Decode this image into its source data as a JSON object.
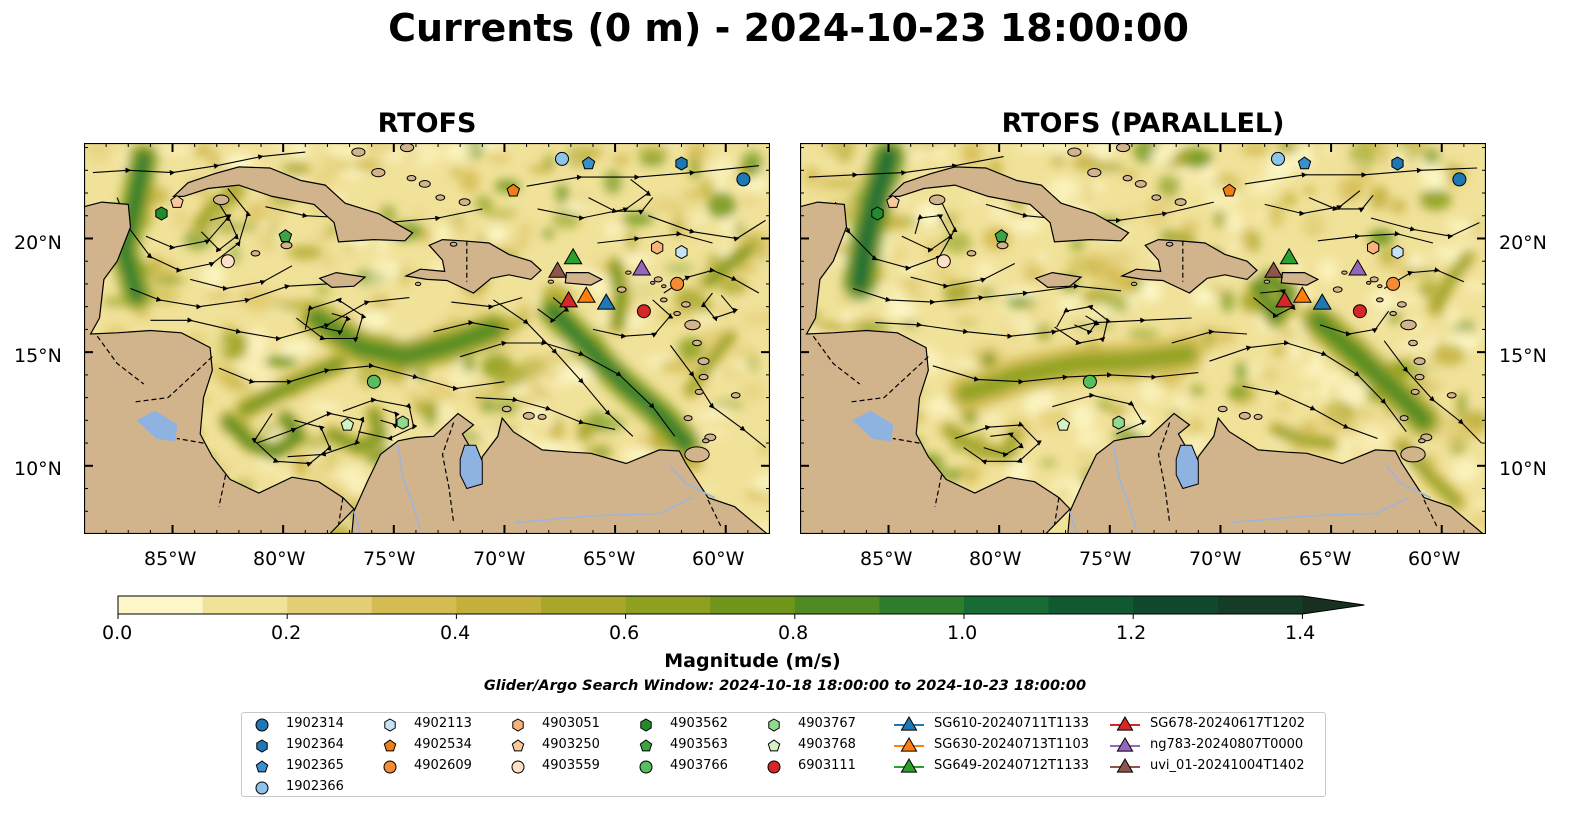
{
  "figure": {
    "title": "Currents (0 m) - 2024-10-23 18:00:00",
    "search_window": "Glider/Argo Search Window: 2024-10-18 18:00:00 to 2024-10-23 18:00:00"
  },
  "maps": [
    {
      "title": "RTOFS"
    },
    {
      "title": "RTOFS (PARALLEL)"
    }
  ],
  "axes": {
    "lon_ticks": [
      -85,
      -80,
      -75,
      -70,
      -65,
      -60
    ],
    "lon_labels": [
      "85°W",
      "80°W",
      "75°W",
      "70°W",
      "65°W",
      "60°W"
    ],
    "lat_ticks": [
      10,
      15,
      20
    ],
    "lat_labels": [
      "10°N",
      "15°N",
      "20°N"
    ],
    "lon_range": [
      -89.0,
      -58.0
    ],
    "lat_range": [
      7.0,
      24.2
    ]
  },
  "colorbar": {
    "label": "Magnitude (m/s)",
    "range": [
      0.0,
      1.5
    ],
    "extend": "max",
    "ticks": [
      "0.0",
      "0.2",
      "0.4",
      "0.6",
      "0.8",
      "1.0",
      "1.2",
      "1.4"
    ],
    "colors": [
      "#fdf7c7",
      "#f1e29a",
      "#e3cd76",
      "#d4bb52",
      "#c2b03a",
      "#a9a72a",
      "#8ea11f",
      "#6f951a",
      "#4f8a22",
      "#2e7d2d",
      "#186b34",
      "#115a31",
      "#10492b",
      "#153d25",
      "#17301f"
    ]
  },
  "colors": {
    "land": "#d2b48c",
    "lake": "#8fb3e0",
    "river": "#9db5d6",
    "coast": "#000000"
  },
  "legend": {
    "columns": [
      [
        {
          "label": "1902314",
          "marker": "circle",
          "color": "#1f77b4"
        },
        {
          "label": "1902364",
          "marker": "hexagon",
          "color": "#1f77b4"
        },
        {
          "label": "1902365",
          "marker": "pentagon",
          "color": "#3a8ec9"
        },
        {
          "label": "1902366",
          "marker": "circle",
          "color": "#8cc4ea"
        }
      ],
      [
        {
          "label": "4902113",
          "marker": "hexagon",
          "color": "#c6e3f5"
        },
        {
          "label": "4902534",
          "marker": "pentagon",
          "color": "#ef7e16"
        },
        {
          "label": "4902609",
          "marker": "circle",
          "color": "#f58b35"
        }
      ],
      [
        {
          "label": "4903051",
          "marker": "hexagon",
          "color": "#f9b27a"
        },
        {
          "label": "4903250",
          "marker": "pentagon",
          "color": "#fbc89c"
        },
        {
          "label": "4903559",
          "marker": "circle",
          "color": "#fde0c6"
        }
      ],
      [
        {
          "label": "4903562",
          "marker": "hexagon",
          "color": "#238b2e"
        },
        {
          "label": "4903563",
          "marker": "pentagon",
          "color": "#3aa542"
        },
        {
          "label": "4903766",
          "marker": "circle",
          "color": "#58bd5c"
        }
      ],
      [
        {
          "label": "4903767",
          "marker": "hexagon",
          "color": "#93d98d"
        },
        {
          "label": "4903768",
          "marker": "pentagon",
          "color": "#d3f3c7"
        },
        {
          "label": "6903111",
          "marker": "circle",
          "color": "#d62728"
        }
      ],
      [
        {
          "label": "SG610-20240711T1133",
          "marker": "triangle",
          "color": "#1f77b4"
        },
        {
          "label": "SG630-20240713T1103",
          "marker": "triangle",
          "color": "#ff7f0e"
        },
        {
          "label": "SG649-20240712T1133",
          "marker": "triangle",
          "color": "#2ca02c"
        }
      ],
      [
        {
          "label": "SG678-20240617T1202",
          "marker": "triangle",
          "color": "#d62728"
        },
        {
          "label": "ng783-20240807T0000",
          "marker": "triangle",
          "color": "#9467bd"
        },
        {
          "label": "uvi_01-20241004T1402",
          "marker": "triangle",
          "color": "#8c564b"
        }
      ]
    ]
  },
  "observations": {
    "rtofs": [
      {
        "id": "1902314",
        "lon": -59.2,
        "lat": 22.6
      },
      {
        "id": "1902364",
        "lon": -62.0,
        "lat": 23.3
      },
      {
        "id": "1902365",
        "lon": -66.2,
        "lat": 23.3
      },
      {
        "id": "1902366",
        "lon": -67.4,
        "lat": 23.5
      },
      {
        "id": "4902113",
        "lon": -62.0,
        "lat": 19.4
      },
      {
        "id": "4902534",
        "lon": -69.6,
        "lat": 22.1
      },
      {
        "id": "4902609",
        "lon": -62.2,
        "lat": 18.0
      },
      {
        "id": "4903051",
        "lon": -63.1,
        "lat": 19.6
      },
      {
        "id": "4903250",
        "lon": -84.8,
        "lat": 21.6
      },
      {
        "id": "4903559",
        "lon": -82.5,
        "lat": 19.0
      },
      {
        "id": "4903562",
        "lon": -85.5,
        "lat": 21.1
      },
      {
        "id": "4903563",
        "lon": -79.9,
        "lat": 20.1
      },
      {
        "id": "4903766",
        "lon": -75.9,
        "lat": 13.7
      },
      {
        "id": "4903767",
        "lon": -74.6,
        "lat": 11.9
      },
      {
        "id": "4903768",
        "lon": -77.1,
        "lat": 11.8
      },
      {
        "id": "6903111",
        "lon": -63.7,
        "lat": 16.8
      },
      {
        "id": "SG610-20240711T1133",
        "lon": -65.4,
        "lat": 17.2
      },
      {
        "id": "SG630-20240713T1103",
        "lon": -66.3,
        "lat": 17.5
      },
      {
        "id": "SG649-20240712T1133",
        "lon": -66.9,
        "lat": 19.2
      },
      {
        "id": "SG678-20240617T1202",
        "lon": -67.1,
        "lat": 17.3
      },
      {
        "id": "ng783-20240807T0000",
        "lon": -63.8,
        "lat": 18.7
      },
      {
        "id": "uvi_01-20241004T1402",
        "lon": -67.6,
        "lat": 18.6
      }
    ],
    "parallel": [
      {
        "id": "1902314",
        "lon": -59.2,
        "lat": 22.6
      },
      {
        "id": "1902364",
        "lon": -62.0,
        "lat": 23.3
      },
      {
        "id": "1902365",
        "lon": -66.2,
        "lat": 23.3
      },
      {
        "id": "1902366",
        "lon": -67.4,
        "lat": 23.5
      },
      {
        "id": "4902113",
        "lon": -62.0,
        "lat": 19.4
      },
      {
        "id": "4902534",
        "lon": -69.6,
        "lat": 22.1
      },
      {
        "id": "4902609",
        "lon": -62.2,
        "lat": 18.0
      },
      {
        "id": "4903051",
        "lon": -63.1,
        "lat": 19.6
      },
      {
        "id": "4903250",
        "lon": -84.8,
        "lat": 21.6
      },
      {
        "id": "4903559",
        "lon": -82.5,
        "lat": 19.0
      },
      {
        "id": "4903562",
        "lon": -85.5,
        "lat": 21.1
      },
      {
        "id": "4903563",
        "lon": -79.9,
        "lat": 20.1
      },
      {
        "id": "4903766",
        "lon": -75.9,
        "lat": 13.7
      },
      {
        "id": "4903767",
        "lon": -74.6,
        "lat": 11.9
      },
      {
        "id": "4903768",
        "lon": -77.1,
        "lat": 11.8
      },
      {
        "id": "6903111",
        "lon": -63.7,
        "lat": 16.8
      },
      {
        "id": "SG610-20240711T1133",
        "lon": -65.4,
        "lat": 17.2
      },
      {
        "id": "SG630-20240713T1103",
        "lon": -66.3,
        "lat": 17.5
      },
      {
        "id": "SG649-20240712T1133",
        "lon": -66.9,
        "lat": 19.2
      },
      {
        "id": "SG678-20240617T1202",
        "lon": -67.1,
        "lat": 17.3
      },
      {
        "id": "ng783-20240807T0000",
        "lon": -63.8,
        "lat": 18.7
      },
      {
        "id": "uvi_01-20241004T1402",
        "lon": -67.6,
        "lat": 18.6
      }
    ]
  }
}
